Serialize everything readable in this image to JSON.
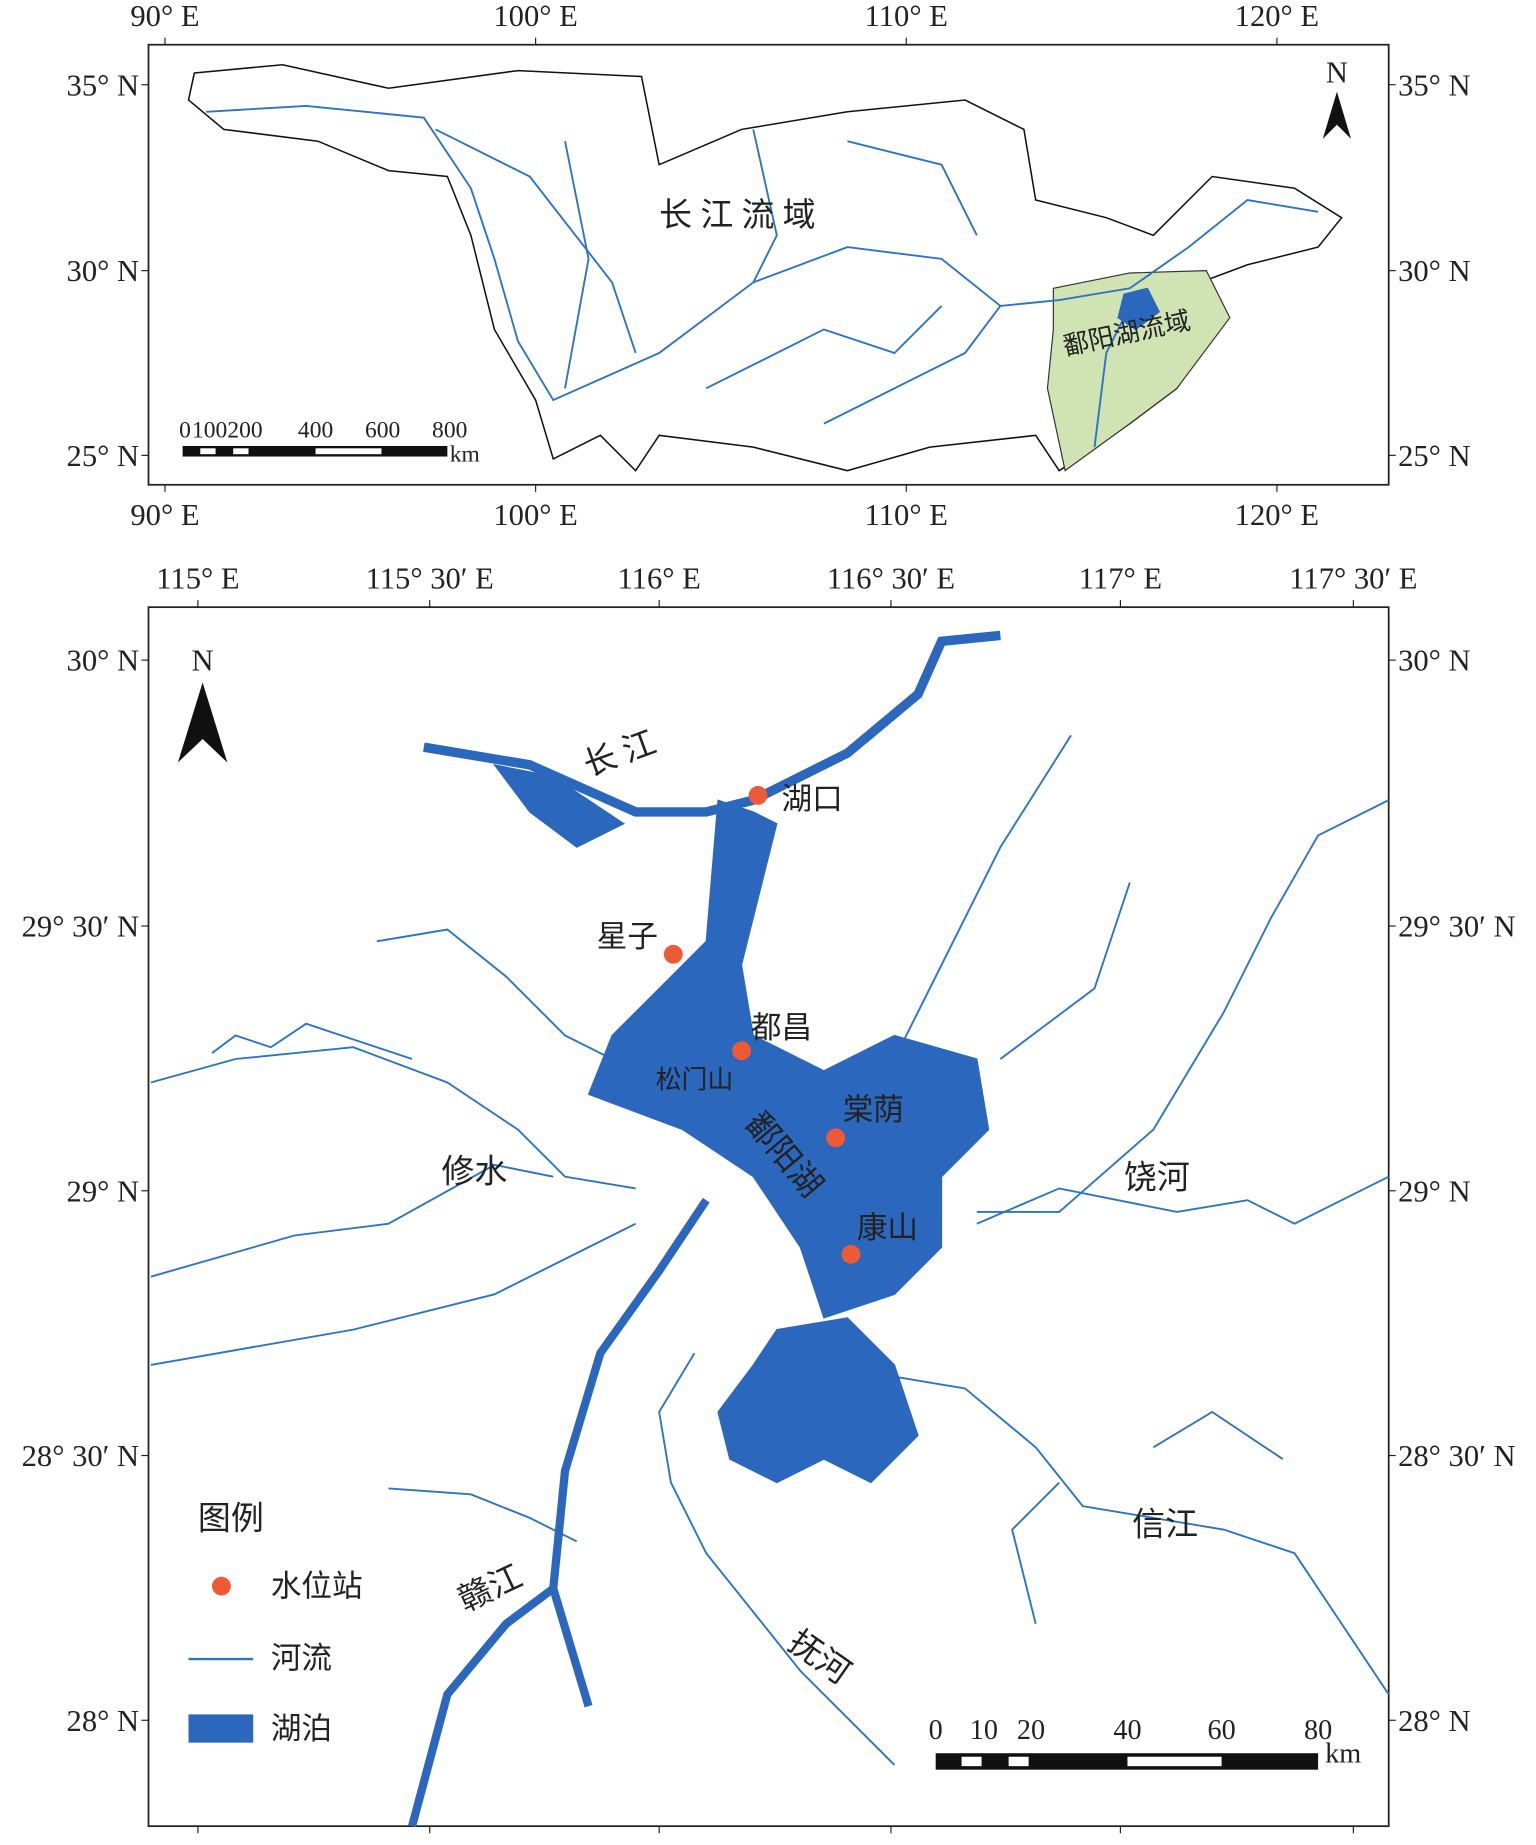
{
  "overview_map": {
    "x_tick_labels": [
      "90° E",
      "100° E",
      "110° E",
      "120° E"
    ],
    "y_tick_labels": [
      "35° N",
      "30° N",
      "25° N"
    ],
    "north": "N",
    "basin_label": "长 江 流 域",
    "sub_basin_label": "鄱阳湖流域",
    "scale_bar": {
      "labels": [
        "0",
        "100",
        "200",
        "400",
        "600",
        "800"
      ],
      "unit": "km"
    }
  },
  "main_map": {
    "x_tick_labels": [
      "115° E",
      "115° 30′ E",
      "116° E",
      "116° 30′ E",
      "117° E",
      "117° 30′ E"
    ],
    "y_tick_labels": [
      "30° N",
      "29° 30′ N",
      "29° N",
      "28° 30′ N",
      "28° N"
    ],
    "north": "N",
    "places": [
      "长 江",
      "修水",
      "饶河",
      "信江",
      "赣江",
      "抚河",
      "鄱阳湖",
      "松门山"
    ],
    "stations": [
      "湖口",
      "星子",
      "都昌",
      "棠荫",
      "康山"
    ],
    "legend": {
      "title": "图例",
      "items": [
        "水位站",
        "河流",
        "湖泊"
      ]
    },
    "scale_bar": {
      "labels": [
        "0",
        "10",
        "20",
        "40",
        "60",
        "80"
      ],
      "unit": "km"
    }
  }
}
